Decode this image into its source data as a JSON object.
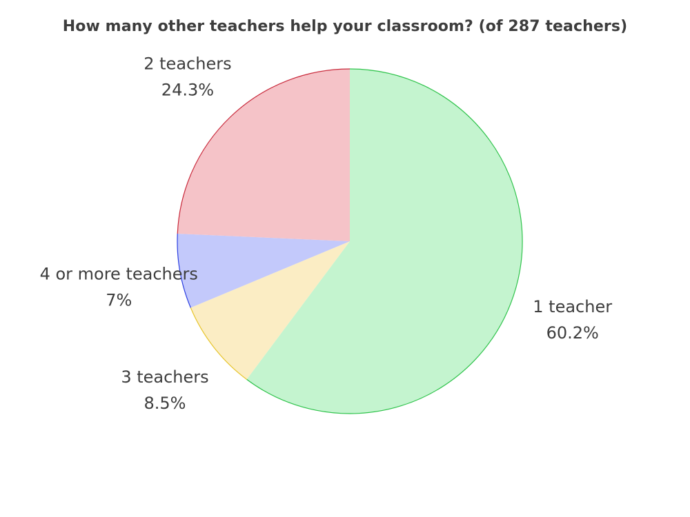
{
  "chart_data": {
    "type": "pie",
    "title": "How many other teachers help your classroom? (of 287 teachers)",
    "slices": [
      {
        "label": "1 teacher",
        "value": 60.2,
        "value_text": "60.2%",
        "fill": "#c4f4cf",
        "stroke": "#2fc34b"
      },
      {
        "label": "3 teachers",
        "value": 8.5,
        "value_text": "8.5%",
        "fill": "#fbedc4",
        "stroke": "#e7c52b"
      },
      {
        "label": "4 or more teachers",
        "value": 7,
        "value_text": "7%",
        "fill": "#c3c9fb",
        "stroke": "#2a3de0"
      },
      {
        "label": "2 teachers",
        "value": 24.3,
        "value_text": "24.3%",
        "fill": "#f5c3c8",
        "stroke": "#c8283a"
      }
    ],
    "start": "top",
    "direction": "clockwise",
    "legend": "none"
  }
}
